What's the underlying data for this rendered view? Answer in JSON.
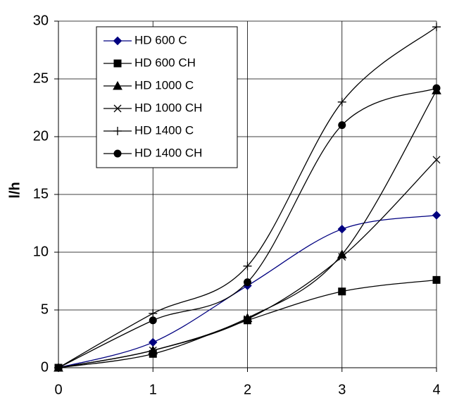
{
  "chart_data": {
    "type": "line",
    "y_label": "l/h",
    "x": [
      0,
      1,
      2,
      3,
      4
    ],
    "xlim": [
      0,
      4
    ],
    "xticks": [
      0,
      1,
      2,
      3,
      4
    ],
    "ylim": [
      0,
      30
    ],
    "yticks": [
      0,
      5,
      10,
      15,
      20,
      25,
      30
    ],
    "grid": true,
    "legend": "upper left",
    "smooth": true,
    "series": [
      {
        "name": "HD 600 C",
        "color": "#000080",
        "marker": "diamond",
        "values": [
          0,
          2.2,
          7.1,
          12,
          13.2
        ]
      },
      {
        "name": "HD 600 CH",
        "color": "#000000",
        "marker": "square",
        "values": [
          0,
          1.2,
          4.1,
          6.6,
          7.6
        ]
      },
      {
        "name": "HD 1000 C",
        "color": "#000000",
        "marker": "triangle",
        "values": [
          0,
          1.5,
          4.3,
          9.8,
          24
        ]
      },
      {
        "name": "HD 1000 CH",
        "color": "#000000",
        "marker": "x",
        "values": [
          0,
          1.5,
          4.2,
          9.6,
          18
        ]
      },
      {
        "name": "HD 1400 C",
        "color": "#000000",
        "marker": "plus",
        "values": [
          0,
          4.7,
          8.8,
          23,
          29.5
        ]
      },
      {
        "name": "HD 1400 CH",
        "color": "#000000",
        "marker": "circle",
        "values": [
          0,
          4.1,
          7.4,
          21,
          24.2
        ]
      }
    ]
  }
}
